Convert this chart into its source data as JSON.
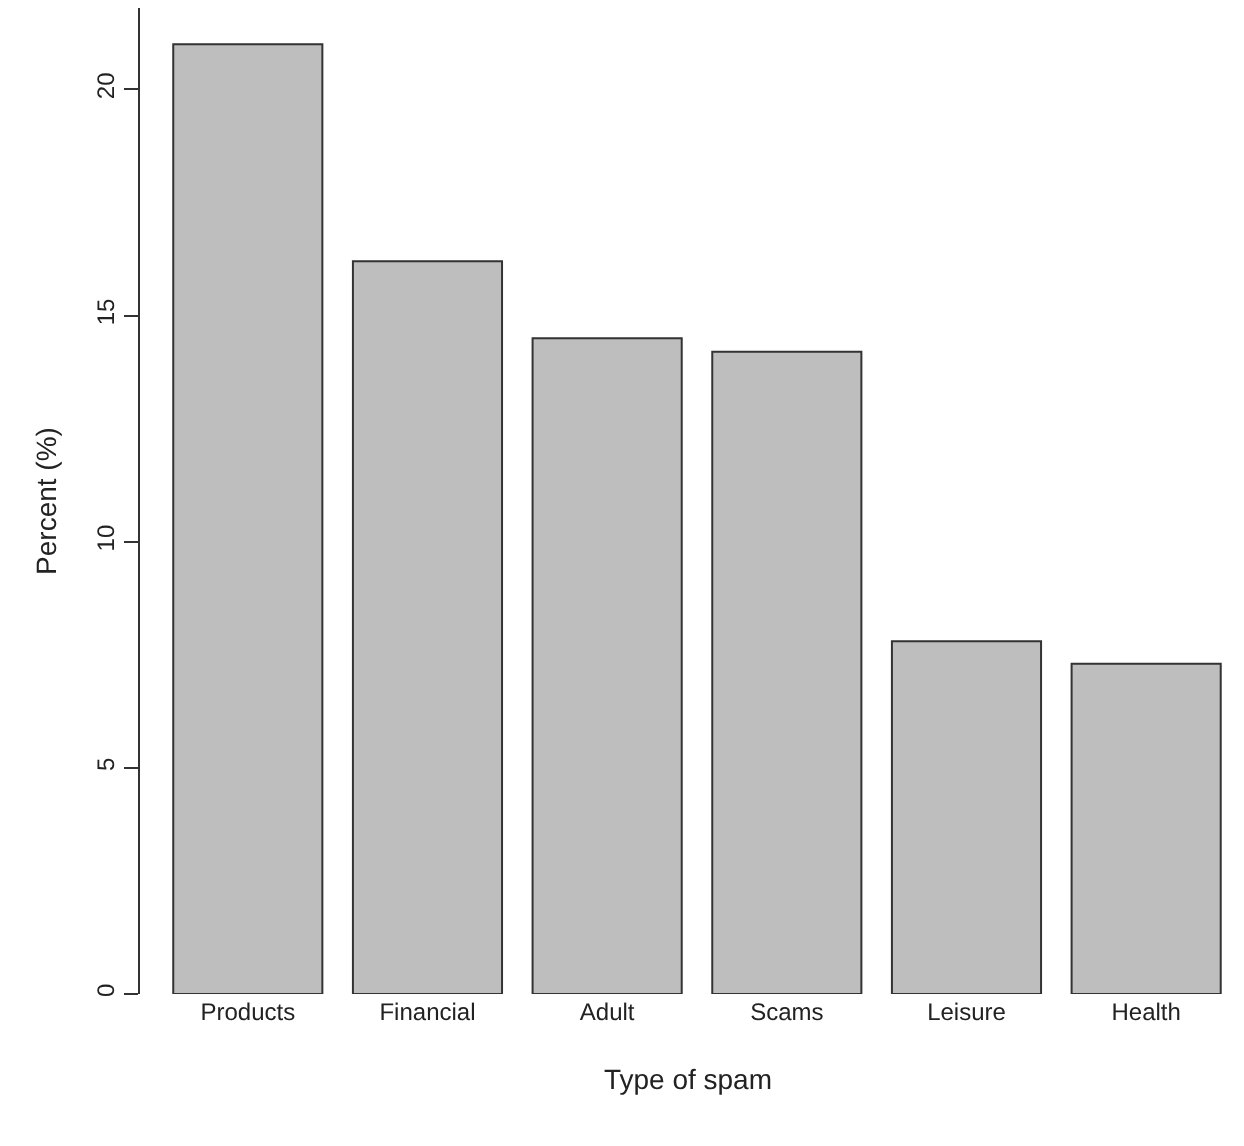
{
  "chart_data": {
    "type": "bar",
    "xlabel": "Type of spam",
    "ylabel": "Percent (%)",
    "categories": [
      "Products",
      "Financial",
      "Adult",
      "Scams",
      "Leisure",
      "Health"
    ],
    "values": [
      21.0,
      16.2,
      14.5,
      14.2,
      7.8,
      7.3
    ],
    "color": "#bebebe",
    "ylim": [
      0,
      21.8
    ],
    "yticks": [
      0,
      5,
      10,
      15,
      20
    ]
  }
}
